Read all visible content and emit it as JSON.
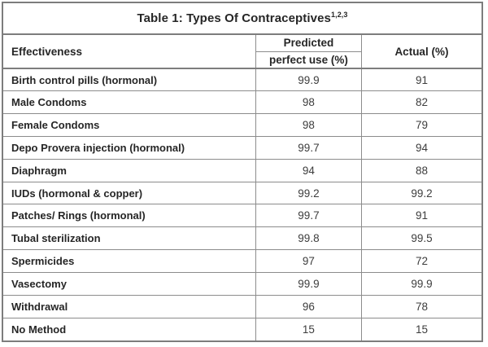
{
  "page": {
    "background_color": "#ffffff",
    "border_color": "#7d7d7d",
    "grid_line_color": "#8c8c8c",
    "text_color": "#262626"
  },
  "table": {
    "title": "Table 1: Types Of Contraceptives",
    "title_superscript": "1,2,3",
    "headers": {
      "effectiveness": "Effectiveness",
      "predicted_line1": "Predicted",
      "predicted_line2": "perfect use (%)",
      "actual": "Actual (%)"
    },
    "rows": [
      {
        "label": "Birth control pills (hormonal)",
        "predicted": "99.9",
        "actual": "91"
      },
      {
        "label": "Male Condoms",
        "predicted": "98",
        "actual": "82"
      },
      {
        "label": "Female Condoms",
        "predicted": "98",
        "actual": "79"
      },
      {
        "label": "Depo Provera injection (hormonal)",
        "predicted": "99.7",
        "actual": "94"
      },
      {
        "label": "Diaphragm",
        "predicted": "94",
        "actual": "88"
      },
      {
        "label": "IUDs (hormonal & copper)",
        "predicted": "99.2",
        "actual": "99.2"
      },
      {
        "label": "Patches/ Rings (hormonal)",
        "predicted": "99.7",
        "actual": "91"
      },
      {
        "label": "Tubal sterilization",
        "predicted": "99.8",
        "actual": "99.5"
      },
      {
        "label": "Spermicides",
        "predicted": "97",
        "actual": "72"
      },
      {
        "label": "Vasectomy",
        "predicted": "99.9",
        "actual": "99.9"
      },
      {
        "label": "Withdrawal",
        "predicted": "96",
        "actual": "78"
      },
      {
        "label": "No Method",
        "predicted": "15",
        "actual": "15"
      }
    ]
  }
}
